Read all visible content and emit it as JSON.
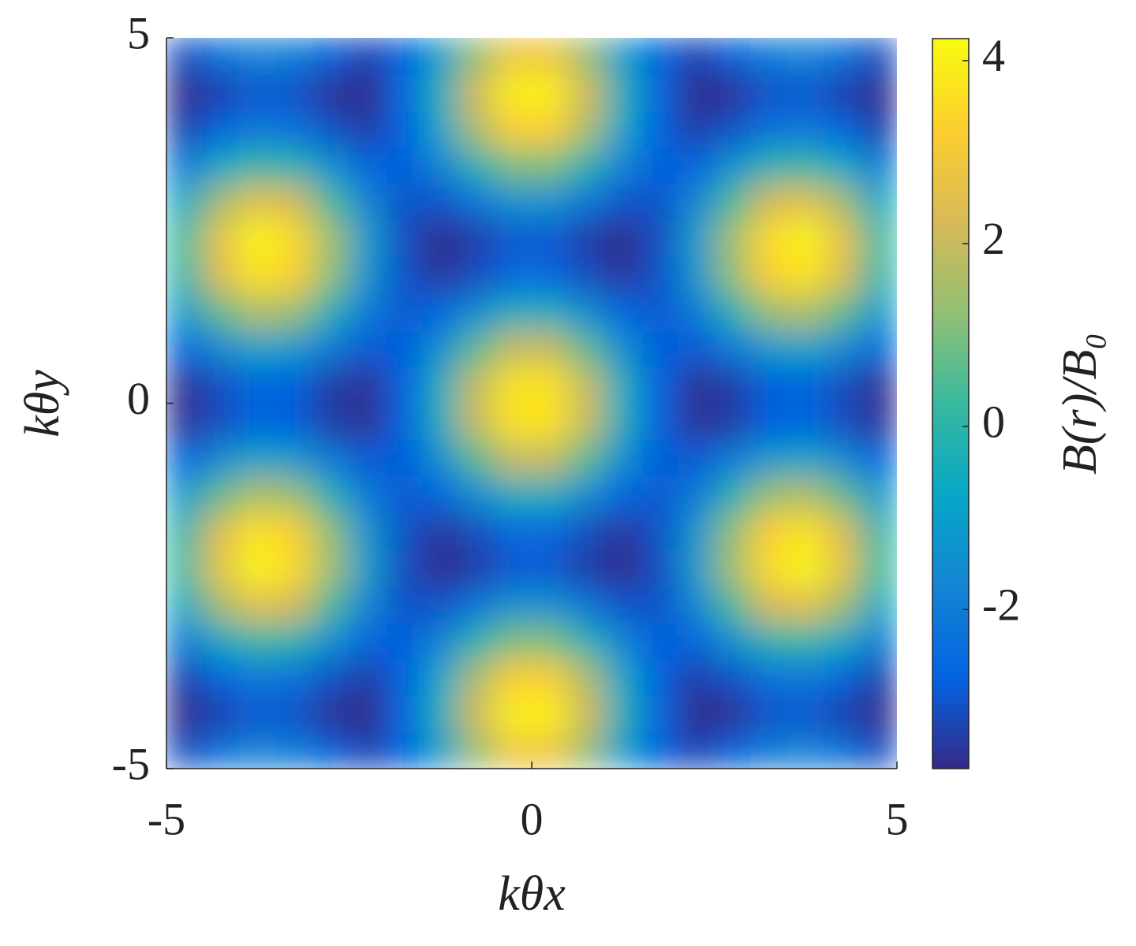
{
  "chart_data": {
    "type": "heatmap",
    "xlabel": "kθx",
    "ylabel": "kθy",
    "colorbar_label": "B(r)/B₀",
    "xlim": [
      -5,
      5
    ],
    "ylim": [
      -5,
      5
    ],
    "xticks": [
      -5,
      0,
      5
    ],
    "yticks": [
      -5,
      0,
      5
    ],
    "clim": [
      -3.74,
      4.24
    ],
    "cticks": [
      -2,
      0,
      2,
      4
    ],
    "colormap": [
      "#352a87",
      "#0363e1",
      "#1485d4",
      "#06a7c6",
      "#38b99e",
      "#92bf73",
      "#d9ba56",
      "#fcce2e",
      "#f9fb0e"
    ],
    "x": [
      -4.75,
      -4.25,
      -3.75,
      -3.25,
      -2.75,
      -2.25,
      -1.75,
      -1.25,
      -0.75,
      -0.25,
      0.25,
      0.75,
      1.25,
      1.75,
      2.25,
      2.75,
      3.25,
      3.75,
      4.25,
      4.75
    ],
    "y": [
      -4.75,
      -4.25,
      -3.75,
      -3.25,
      -2.75,
      -2.25,
      -1.75,
      -1.25,
      -0.75,
      -0.25,
      0.25,
      0.75,
      1.25,
      1.75,
      2.25,
      2.75,
      3.25,
      3.75,
      4.25,
      4.75
    ],
    "z": [
      [
        -3.1,
        -2.3,
        -1.8,
        -2.0,
        -2.8,
        -3.3,
        -2.7,
        -1.0,
        1.3,
        2.9,
        2.9,
        1.3,
        -1.0,
        -2.7,
        -3.3,
        -2.8,
        -2.0,
        -1.8,
        -2.3,
        -3.1
      ],
      [
        -3.7,
        -3.3,
        -2.9,
        -3.0,
        -3.6,
        -3.7,
        -2.6,
        -0.4,
        2.2,
        4.0,
        4.0,
        2.2,
        -0.4,
        -2.6,
        -3.7,
        -3.6,
        -3.0,
        -2.9,
        -3.3,
        -3.7
      ],
      [
        -3.3,
        -2.6,
        -2.1,
        -2.3,
        -3.0,
        -3.4,
        -2.7,
        -0.8,
        1.6,
        3.2,
        3.2,
        1.6,
        -0.8,
        -2.7,
        -3.4,
        -3.0,
        -2.3,
        -2.1,
        -2.6,
        -3.3
      ],
      [
        -2.0,
        -0.7,
        0.1,
        -0.2,
        -1.4,
        -2.6,
        -2.8,
        -1.8,
        -0.2,
        1.0,
        1.0,
        -0.2,
        -1.8,
        -2.8,
        -2.6,
        -1.4,
        -0.2,
        0.1,
        -0.7,
        -2.0
      ],
      [
        -0.6,
        1.5,
        2.6,
        2.2,
        0.4,
        -1.7,
        -3.0,
        -3.0,
        -2.2,
        -1.4,
        -1.4,
        -2.2,
        -3.0,
        -3.0,
        -1.7,
        0.4,
        2.2,
        2.6,
        1.5,
        -0.6
      ],
      [
        0.3,
        2.7,
        4.1,
        3.5,
        1.5,
        -1.1,
        -3.1,
        -3.7,
        -3.4,
        -2.9,
        -2.9,
        -3.4,
        -3.7,
        -3.1,
        -1.1,
        1.5,
        3.5,
        4.1,
        2.7,
        0.3
      ],
      [
        0.0,
        2.4,
        3.7,
        3.2,
        1.2,
        -1.3,
        -3.0,
        -3.5,
        -3.1,
        -2.5,
        -2.5,
        -3.1,
        -3.5,
        -3.0,
        -1.3,
        1.2,
        3.2,
        3.7,
        2.4,
        0.0
      ],
      [
        -1.1,
        0.7,
        1.7,
        1.3,
        -0.3,
        -2.0,
        -2.9,
        -2.6,
        -1.5,
        -0.5,
        -0.5,
        -1.5,
        -2.6,
        -2.9,
        -2.0,
        -0.3,
        1.3,
        1.7,
        0.7,
        -1.1
      ],
      [
        -2.6,
        -1.6,
        -0.9,
        -1.2,
        -2.1,
        -2.9,
        -2.8,
        -1.4,
        0.6,
        2.0,
        2.0,
        0.6,
        -1.4,
        -2.8,
        -2.9,
        -2.1,
        -1.2,
        -0.9,
        -1.6,
        -2.6
      ],
      [
        -3.6,
        -3.1,
        -2.6,
        -2.8,
        -3.4,
        -3.6,
        -2.7,
        -0.5,
        2.0,
        3.7,
        3.7,
        2.0,
        -0.5,
        -2.7,
        -3.6,
        -3.4,
        -2.8,
        -2.6,
        -3.1,
        -3.6
      ],
      [
        -3.6,
        -3.1,
        -2.6,
        -2.8,
        -3.4,
        -3.6,
        -2.7,
        -0.5,
        2.0,
        3.7,
        3.7,
        2.0,
        -0.5,
        -2.7,
        -3.6,
        -3.4,
        -2.8,
        -2.6,
        -3.1,
        -3.6
      ],
      [
        -2.6,
        -1.6,
        -0.9,
        -1.2,
        -2.1,
        -2.9,
        -2.8,
        -1.4,
        0.6,
        2.0,
        2.0,
        0.6,
        -1.4,
        -2.8,
        -2.9,
        -2.1,
        -1.2,
        -0.9,
        -1.6,
        -2.6
      ],
      [
        -1.1,
        0.7,
        1.7,
        1.3,
        -0.3,
        -2.0,
        -2.9,
        -2.6,
        -1.5,
        -0.5,
        -0.5,
        -1.5,
        -2.6,
        -2.9,
        -2.0,
        -0.3,
        1.3,
        1.7,
        0.7,
        -1.1
      ],
      [
        0.0,
        2.4,
        3.7,
        3.2,
        1.2,
        -1.3,
        -3.0,
        -3.5,
        -3.1,
        -2.5,
        -2.5,
        -3.1,
        -3.5,
        -3.0,
        -1.3,
        1.2,
        3.2,
        3.7,
        2.4,
        0.0
      ],
      [
        0.3,
        2.7,
        4.1,
        3.5,
        1.5,
        -1.1,
        -3.1,
        -3.7,
        -3.4,
        -2.9,
        -2.9,
        -3.4,
        -3.7,
        -3.1,
        -1.1,
        1.5,
        3.5,
        4.1,
        2.7,
        0.3
      ],
      [
        -0.6,
        1.5,
        2.6,
        2.2,
        0.4,
        -1.7,
        -3.0,
        -3.0,
        -2.2,
        -1.4,
        -1.4,
        -2.2,
        -3.0,
        -3.0,
        -1.7,
        0.4,
        2.2,
        2.6,
        1.5,
        -0.6
      ],
      [
        -2.0,
        -0.7,
        0.1,
        -0.2,
        -1.4,
        -2.6,
        -2.8,
        -1.8,
        -0.2,
        1.0,
        1.0,
        -0.2,
        -1.8,
        -2.8,
        -2.6,
        -1.4,
        -0.2,
        0.1,
        -0.7,
        -2.0
      ],
      [
        -3.3,
        -2.6,
        -2.1,
        -2.3,
        -3.0,
        -3.4,
        -2.7,
        -0.8,
        1.6,
        3.2,
        3.2,
        1.6,
        -0.8,
        -2.7,
        -3.4,
        -3.0,
        -2.3,
        -2.1,
        -2.6,
        -3.3
      ],
      [
        -3.7,
        -3.3,
        -2.9,
        -3.0,
        -3.6,
        -3.7,
        -2.6,
        -0.4,
        2.2,
        4.0,
        4.0,
        2.2,
        -0.4,
        -2.6,
        -3.7,
        -3.6,
        -3.0,
        -2.9,
        -3.3,
        -3.7
      ],
      [
        -3.1,
        -2.3,
        -1.8,
        -2.0,
        -2.8,
        -3.3,
        -2.7,
        -1.0,
        1.3,
        2.9,
        2.9,
        1.3,
        -1.0,
        -2.7,
        -3.3,
        -2.8,
        -2.0,
        -1.8,
        -2.3,
        -3.1
      ]
    ]
  }
}
